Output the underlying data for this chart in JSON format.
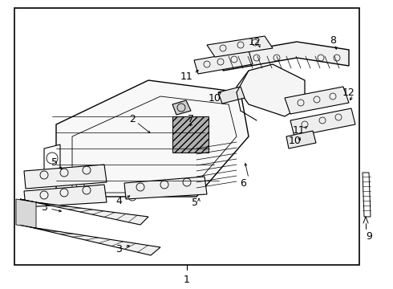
{
  "background_color": "#ffffff",
  "line_color": "#000000",
  "text_color": "#000000",
  "figure_width": 4.9,
  "figure_height": 3.6,
  "dpi": 100
}
